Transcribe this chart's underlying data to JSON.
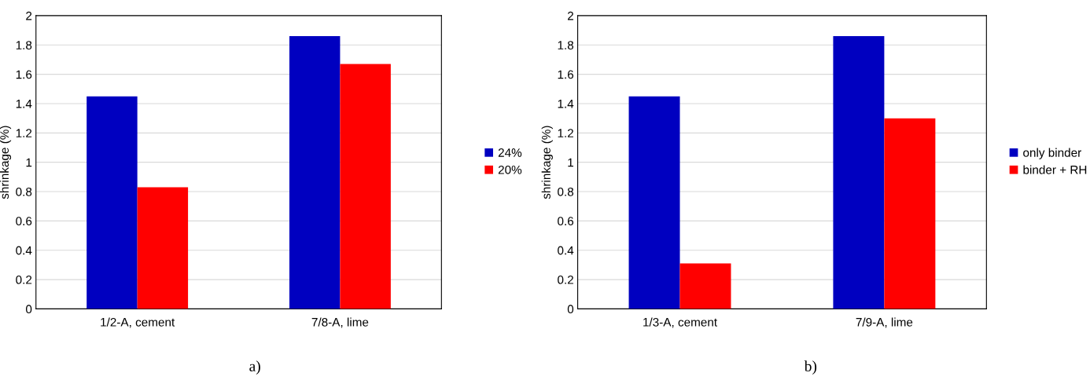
{
  "chart_data": [
    {
      "type": "bar",
      "ylabel": "shrinkage (%)",
      "categories": [
        "1/2-A, cement",
        "7/8-A, lime"
      ],
      "series": [
        {
          "name": "24%",
          "color": "#0000c0",
          "values": [
            1.45,
            1.86
          ]
        },
        {
          "name": "20%",
          "color": "#ff0000",
          "values": [
            0.83,
            1.67
          ]
        }
      ],
      "ylim": [
        0,
        2
      ],
      "yticks": [
        0,
        0.2,
        0.4,
        0.6,
        0.8,
        1,
        1.2,
        1.4,
        1.6,
        1.8,
        2
      ],
      "grid": "y",
      "legend": "right",
      "annotations": [
        "a)"
      ]
    },
    {
      "type": "bar",
      "ylabel": "shrinkage (%)",
      "categories": [
        "1/3-A, cement",
        "7/9-A, lime"
      ],
      "series": [
        {
          "name": "only binder",
          "color": "#0000c0",
          "values": [
            1.45,
            1.86
          ]
        },
        {
          "name": "binder + RH",
          "color": "#ff0000",
          "values": [
            0.31,
            1.3
          ]
        }
      ],
      "ylim": [
        0,
        2
      ],
      "yticks": [
        0,
        0.2,
        0.4,
        0.6,
        0.8,
        1,
        1.2,
        1.4,
        1.6,
        1.8,
        2
      ],
      "grid": "y",
      "legend": "right",
      "annotations": [
        "b)"
      ]
    }
  ]
}
